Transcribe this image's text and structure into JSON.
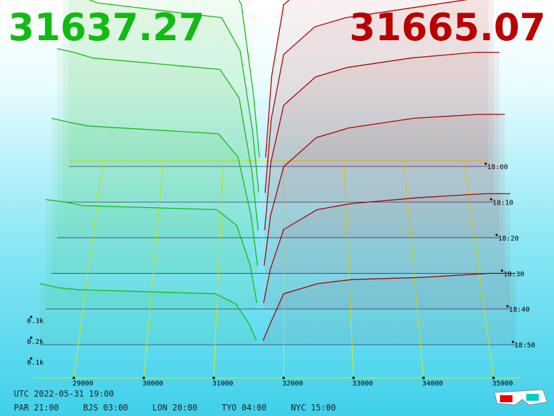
{
  "chart_data": {
    "type": "depth3d",
    "bid": 31637.27,
    "ask": 31665.07,
    "bid_color": "#11bb11",
    "ask_color": "#aa0000",
    "bid_x": [
      28440,
      28700,
      29000,
      30000,
      31000,
      31300,
      31500,
      31600
    ],
    "ask_x": [
      31700,
      31800,
      32000,
      32500,
      33000,
      34000,
      35000,
      35390
    ],
    "snapshots": [
      {
        "bid": [
          1300,
          1250,
          1200,
          1150,
          1100,
          900,
          400,
          50
        ],
        "ask": [
          50,
          500,
          900,
          1050,
          1100,
          1150,
          1200,
          1200
        ]
      },
      {
        "bid": [
          1150,
          1120,
          1080,
          1040,
          1000,
          820,
          380,
          50
        ],
        "ask": [
          50,
          450,
          800,
          950,
          1000,
          1050,
          1100,
          1100
        ]
      },
      {
        "bid": [
          1000,
          980,
          950,
          920,
          890,
          740,
          350,
          40
        ],
        "ask": [
          40,
          400,
          700,
          850,
          900,
          950,
          980,
          980
        ]
      },
      {
        "bid": [
          800,
          780,
          760,
          740,
          720,
          600,
          300,
          40
        ],
        "ask": [
          40,
          300,
          550,
          700,
          750,
          800,
          820,
          820
        ]
      },
      {
        "bid": [
          550,
          540,
          520,
          510,
          500,
          420,
          220,
          30
        ],
        "ask": [
          30,
          200,
          400,
          500,
          530,
          560,
          580,
          580
        ]
      },
      {
        "bid": [
          300,
          280,
          270,
          260,
          250,
          200,
          100,
          20
        ],
        "ask": [
          20,
          100,
          250,
          300,
          320,
          330,
          350,
          350
        ]
      }
    ],
    "xlim": [
      28440,
      35390
    ],
    "xticks": [
      29000,
      30000,
      31000,
      32000,
      33000,
      34000,
      35000
    ],
    "ylim": [
      0,
      1500
    ],
    "yticks": [
      {
        "value": 100,
        "label": "0.1k"
      },
      {
        "value": 200,
        "label": "0.2k"
      },
      {
        "value": 300,
        "label": "0.3k"
      }
    ],
    "time_ticks": [
      "18:00",
      "18:10",
      "18:20",
      "18:30",
      "18:40",
      "18:50"
    ]
  },
  "footer": {
    "utc": "UTC 2022-05-31 19:00",
    "zones": [
      "PAR 21:00",
      "BJS 03:00",
      "LON 20:00",
      "TYO 04:00",
      "NYC 15:00"
    ]
  }
}
